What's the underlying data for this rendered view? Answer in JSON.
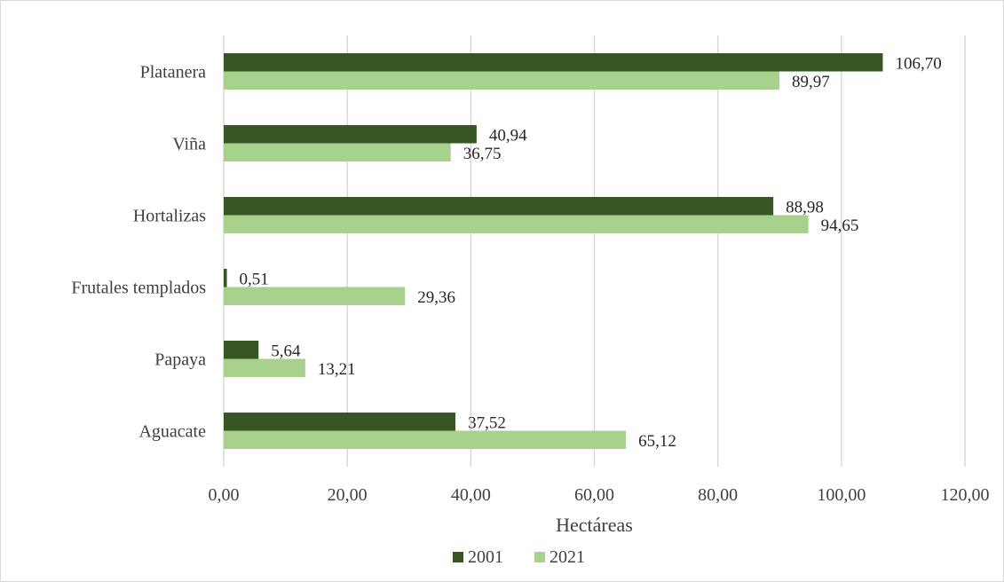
{
  "chart_data": {
    "type": "bar",
    "orientation": "horizontal",
    "categories": [
      "Platanera",
      "Viña",
      "Hortalizas",
      "Frutales templados",
      "Papaya",
      "Aguacate"
    ],
    "series": [
      {
        "name": "2001",
        "color": "#375623",
        "values": [
          106.7,
          40.94,
          88.98,
          0.51,
          5.64,
          37.52
        ],
        "labels": [
          "106,70",
          "40,94",
          "88,98",
          "0,51",
          "5,64",
          "37,52"
        ]
      },
      {
        "name": "2021",
        "color": "#a9d18e",
        "values": [
          89.97,
          36.75,
          94.65,
          29.36,
          13.21,
          65.12
        ],
        "labels": [
          "89,97",
          "36,75",
          "94,65",
          "29,36",
          "13,21",
          "65,12"
        ]
      }
    ],
    "xlabel": "Hectáreas",
    "ylabel": "",
    "title": "",
    "xlim": [
      0,
      120
    ],
    "xticks": [
      0,
      20,
      40,
      60,
      80,
      100,
      120
    ],
    "xtick_labels": [
      "0,00",
      "20,00",
      "40,00",
      "60,00",
      "80,00",
      "100,00",
      "120,00"
    ],
    "grid": "vertical",
    "legend_position": "bottom"
  }
}
